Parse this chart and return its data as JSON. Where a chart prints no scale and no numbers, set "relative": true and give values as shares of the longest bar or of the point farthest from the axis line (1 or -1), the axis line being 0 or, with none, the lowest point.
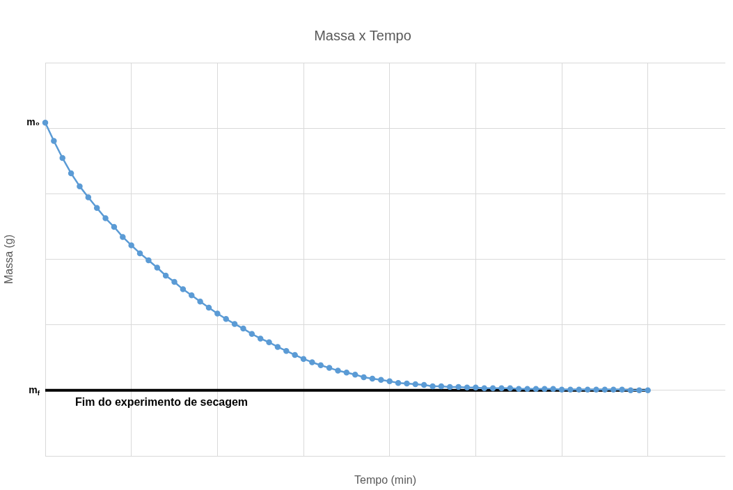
{
  "chart_data": {
    "type": "line",
    "title": "Massa x Tempo",
    "xlabel": "Tempo (min)",
    "ylabel": "Massa (g)",
    "relative": true,
    "categories": [
      null,
      null,
      null,
      null,
      null,
      null,
      null,
      null,
      null,
      null,
      null,
      null,
      null,
      null,
      null,
      null,
      null,
      null,
      null,
      null,
      null,
      null,
      null,
      null,
      null,
      null,
      null,
      null,
      null,
      null,
      null,
      null,
      null,
      null,
      null,
      null,
      null,
      null,
      null,
      null,
      null,
      null,
      null,
      null,
      null,
      null,
      null,
      null,
      null,
      null,
      null,
      null,
      null,
      null,
      null,
      null,
      null,
      null,
      null,
      null,
      null,
      null,
      null,
      null,
      null,
      null,
      null,
      null,
      null,
      null,
      null,
      null,
      null,
      null,
      null,
      null,
      null,
      null,
      null,
      null
    ],
    "series": [
      {
        "color": "#000000",
        "marker": "none",
        "values": [
          0.197,
          0.197,
          0.197,
          0.197,
          0.197,
          0.197,
          0.197,
          0.197,
          0.197,
          0.197,
          0.197,
          0.197,
          0.197,
          0.197,
          0.197,
          0.197,
          0.197,
          0.197,
          0.197,
          0.197,
          0.197,
          0.197,
          0.197,
          0.197,
          0.197,
          0.197,
          0.197,
          0.197,
          0.197,
          0.197,
          0.197,
          0.197,
          0.197,
          0.197,
          0.197,
          0.197,
          0.197,
          0.197,
          0.197,
          0.197,
          0.197,
          0.197,
          0.197,
          0.197,
          0.197,
          0.197,
          0.197,
          0.197,
          0.197,
          0.197,
          0.197,
          0.197,
          0.197,
          0.197,
          0.197,
          0.197,
          0.197,
          0.197,
          0.197,
          0.197,
          0.197,
          0.197,
          0.197,
          0.197,
          0.197,
          0.197,
          0.197,
          0.197,
          0.197,
          0.197,
          0.197,
          null,
          null,
          null,
          null,
          null,
          null,
          null,
          null,
          null
        ]
      },
      {
        "color": "#5b9bd5",
        "values": [
          1,
          0.945,
          0.894,
          0.848,
          0.809,
          0.776,
          0.744,
          0.713,
          0.687,
          0.657,
          0.632,
          0.608,
          0.587,
          0.565,
          0.541,
          0.522,
          0.5,
          0.482,
          0.463,
          0.445,
          0.427,
          0.411,
          0.396,
          0.382,
          0.366,
          0.352,
          0.341,
          0.327,
          0.315,
          0.303,
          0.291,
          0.281,
          0.272,
          0.264,
          0.256,
          0.25,
          0.244,
          0.236,
          0.232,
          0.228,
          0.224,
          0.219,
          0.217,
          0.215,
          0.213,
          0.209,
          0.209,
          0.207,
          0.207,
          0.205,
          0.205,
          0.203,
          0.203,
          0.203,
          0.203,
          0.201,
          0.201,
          0.201,
          0.201,
          0.201,
          0.199,
          0.199,
          0.199,
          0.199,
          0.199,
          0.199,
          0.199,
          0.199,
          0.197,
          0.197,
          0.197,
          null,
          null,
          null,
          null,
          null,
          null,
          null,
          null,
          null
        ]
      }
    ],
    "annotations": [
      "m₀",
      "m$_{f}$",
      {
        "text": "Fim do experimento de secagem",
        "y": 0.197
      }
    ],
    "grid": true,
    "marker": "circle"
  }
}
